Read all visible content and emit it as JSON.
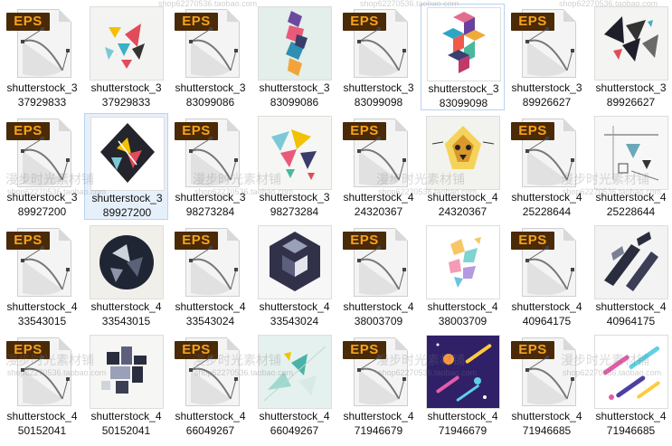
{
  "watermarks": {
    "shop_url": "shop62270536.taobao.com",
    "shop_name": "漫步时光素材铺"
  },
  "files": [
    {
      "name_line1": "shutterstock_3",
      "name_line2": "37929833",
      "kind": "eps"
    },
    {
      "name_line1": "shutterstock_3",
      "name_line2": "37929833",
      "kind": "preview-triangles"
    },
    {
      "name_line1": "shutterstock_3",
      "name_line2": "83099086",
      "kind": "eps"
    },
    {
      "name_line1": "shutterstock_3",
      "name_line2": "83099086",
      "kind": "preview-column"
    },
    {
      "name_line1": "shutterstock_3",
      "name_line2": "83099098",
      "kind": "eps"
    },
    {
      "name_line1": "shutterstock_3",
      "name_line2": "83099098",
      "kind": "preview-cubes"
    },
    {
      "name_line1": "shutterstock_3",
      "name_line2": "89926627",
      "kind": "eps"
    },
    {
      "name_line1": "shutterstock_3",
      "name_line2": "89926627",
      "kind": "preview-dark-triangles"
    },
    {
      "name_line1": "shutterstock_3",
      "name_line2": "89927200",
      "kind": "eps"
    },
    {
      "name_line1": "shutterstock_3",
      "name_line2": "89927200",
      "kind": "preview-diamond"
    },
    {
      "name_line1": "shutterstock_3",
      "name_line2": "98273284",
      "kind": "eps"
    },
    {
      "name_line1": "shutterstock_3",
      "name_line2": "98273284",
      "kind": "preview-tri-cluster"
    },
    {
      "name_line1": "shutterstock_4",
      "name_line2": "24320367",
      "kind": "eps"
    },
    {
      "name_line1": "shutterstock_4",
      "name_line2": "24320367",
      "kind": "preview-lion"
    },
    {
      "name_line1": "shutterstock_4",
      "name_line2": "25228644",
      "kind": "eps"
    },
    {
      "name_line1": "shutterstock_4",
      "name_line2": "25228644",
      "kind": "preview-sketch"
    },
    {
      "name_line1": "shutterstock_4",
      "name_line2": "33543015",
      "kind": "eps"
    },
    {
      "name_line1": "shutterstock_4",
      "name_line2": "33543015",
      "kind": "preview-circle"
    },
    {
      "name_line1": "shutterstock_4",
      "name_line2": "33543024",
      "kind": "eps"
    },
    {
      "name_line1": "shutterstock_4",
      "name_line2": "33543024",
      "kind": "preview-hex"
    },
    {
      "name_line1": "shutterstock_4",
      "name_line2": "38003709",
      "kind": "eps"
    },
    {
      "name_line1": "shutterstock_4",
      "name_line2": "38003709",
      "kind": "preview-pastel"
    },
    {
      "name_line1": "shutterstock_4",
      "name_line2": "40964175",
      "kind": "eps"
    },
    {
      "name_line1": "shutterstock_4",
      "name_line2": "40964175",
      "kind": "preview-diagonal"
    },
    {
      "name_line1": "shutterstock_4",
      "name_line2": "50152041",
      "kind": "eps"
    },
    {
      "name_line1": "shutterstock_4",
      "name_line2": "50152041",
      "kind": "preview-blocks"
    },
    {
      "name_line1": "shutterstock_4",
      "name_line2": "66049267",
      "kind": "eps"
    },
    {
      "name_line1": "shutterstock_4",
      "name_line2": "66049267",
      "kind": "preview-teal"
    },
    {
      "name_line1": "shutterstock_4",
      "name_line2": "71946679",
      "kind": "eps"
    },
    {
      "name_line1": "shutterstock_4",
      "name_line2": "71946679",
      "kind": "preview-space"
    },
    {
      "name_line1": "shutterstock_4",
      "name_line2": "71946685",
      "kind": "eps"
    },
    {
      "name_line1": "shutterstock_4",
      "name_line2": "71946685",
      "kind": "preview-streaks"
    }
  ],
  "selected_index": 9,
  "hover_index": 5
}
